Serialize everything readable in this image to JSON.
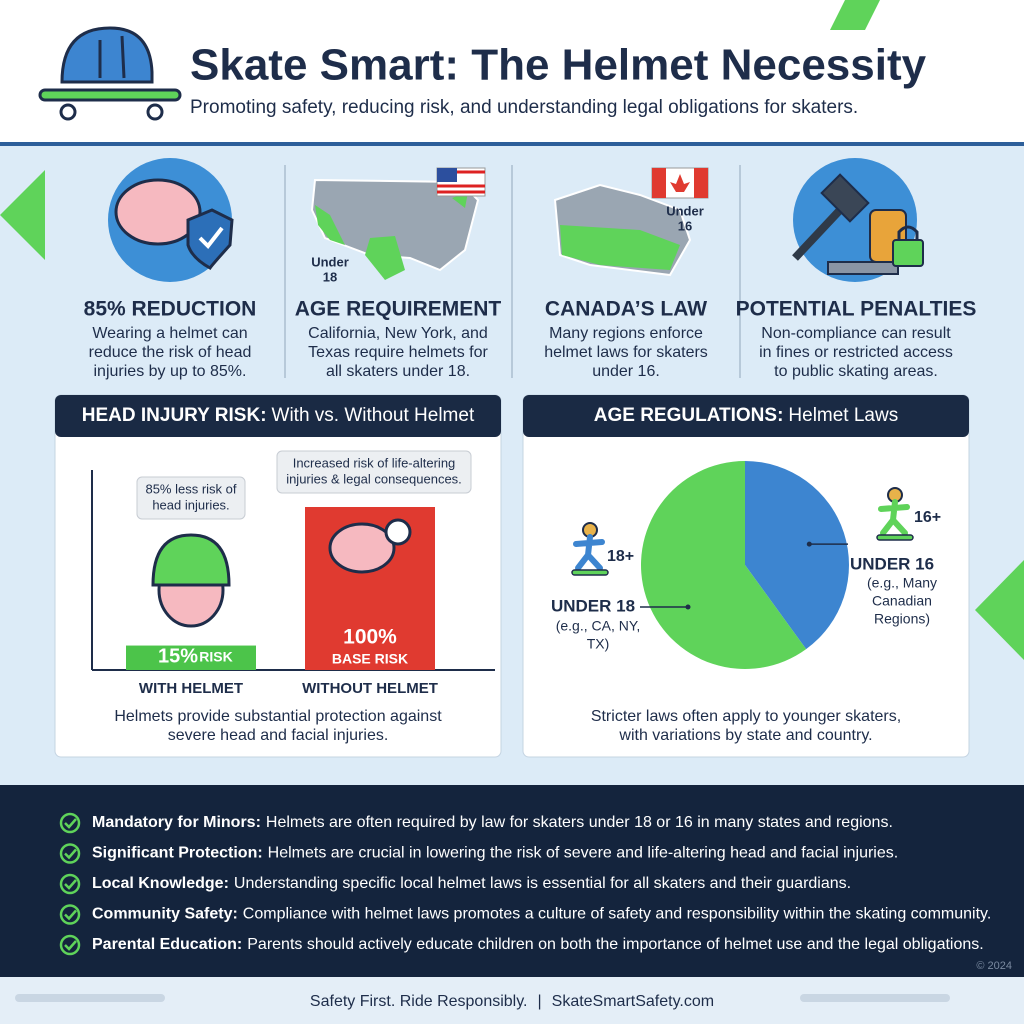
{
  "header": {
    "title": "Skate Smart: The Helmet Necessity",
    "subtitle": "Promoting safety, reducing risk, and understanding legal obligations for skaters."
  },
  "stats": [
    {
      "heading": "85% REDUCTION",
      "lines": [
        "Wearing a helmet can",
        "reduce the risk of head",
        "injuries by up to 85%."
      ]
    },
    {
      "heading": "AGE REQUIREMENT",
      "lines": [
        "California, New York, and",
        "Texas require helmets for",
        "all skaters under 18."
      ],
      "map_label": [
        "Under",
        "18"
      ]
    },
    {
      "heading": "CANADA’S LAW",
      "lines": [
        "Many regions enforce",
        "helmet laws for skaters",
        "under 16."
      ],
      "map_label": [
        "Under",
        "16"
      ]
    },
    {
      "heading": "POTENTIAL PENALTIES",
      "lines": [
        "Non-compliance can result",
        "in fines or restricted access",
        "to public skating areas."
      ]
    }
  ],
  "chart_data": [
    {
      "type": "bar",
      "title": "HEAD INJURY RISK:",
      "subtitle": "With vs. Without Helmet",
      "categories": [
        "WITH HELMET",
        "WITHOUT HELMET"
      ],
      "values": [
        15,
        100
      ],
      "value_labels": [
        "15%",
        "100%"
      ],
      "bar_notes": [
        "RISK",
        "BASE RISK"
      ],
      "colors": [
        "#4cc44a",
        "#e03a30"
      ],
      "ylim": [
        0,
        100
      ],
      "annotations": [
        [
          "85% less risk of",
          "head injuries."
        ],
        [
          "Increased risk of life-altering",
          "injuries & legal consequences."
        ]
      ],
      "caption": [
        "Helmets provide substantial protection against",
        "severe head and facial injuries."
      ]
    },
    {
      "type": "pie",
      "title": "AGE REGULATIONS:",
      "subtitle": "Helmet Laws",
      "categories": [
        "UNDER 16",
        "UNDER 18"
      ],
      "values": [
        40,
        60
      ],
      "colors": [
        "#3d85d0",
        "#5fd35a"
      ],
      "details": [
        [
          "(e.g., Many",
          "Canadian",
          "Regions)"
        ],
        [
          "(e.g., CA, NY,",
          "TX)"
        ]
      ],
      "icon_labels": [
        "16+",
        "18+"
      ],
      "caption": [
        "Stricter laws often apply to younger skaters,",
        "with variations by state and country."
      ]
    }
  ],
  "bullets": [
    {
      "lead": "Mandatory for Minors:",
      "text": "Helmets are often required by law for skaters under 18 or 16 in many states and regions."
    },
    {
      "lead": "Significant Protection:",
      "text": "Helmets are crucial in lowering the risk of severe and life-altering head and facial injuries."
    },
    {
      "lead": "Local Knowledge:",
      "text": "Understanding specific local helmet laws is essential for all skaters and their guardians."
    },
    {
      "lead": "Community Safety:",
      "text": "Compliance with helmet laws promotes a culture of safety and responsibility within the skating community."
    },
    {
      "lead": "Parental Education:",
      "text": "Parents should actively educate children on both the importance of helmet use and the legal obligations."
    }
  ],
  "copyright": "© 2024",
  "footer": {
    "tagline": "Safety First. Ride Responsibly.",
    "separator": "|",
    "site": "SkateSmartSafety.com"
  }
}
